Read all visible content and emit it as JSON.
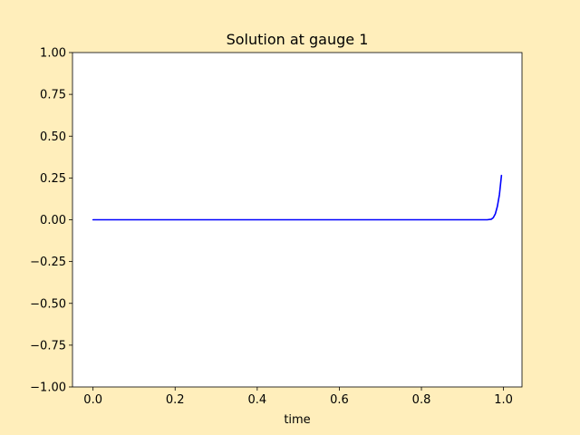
{
  "figure": {
    "background": "#ffeebb"
  },
  "chart_data": {
    "type": "line",
    "title": "Solution at gauge 1",
    "xlabel": "time",
    "ylabel": "",
    "xlim": [
      -0.05,
      1.045
    ],
    "ylim": [
      -1.0,
      1.0
    ],
    "xticks": [
      0.0,
      0.2,
      0.4,
      0.6,
      0.8,
      1.0
    ],
    "xtick_labels": [
      "0.0",
      "0.2",
      "0.4",
      "0.6",
      "0.8",
      "1.0"
    ],
    "yticks": [
      -1.0,
      -0.75,
      -0.5,
      -0.25,
      0.0,
      0.25,
      0.5,
      0.75,
      1.0
    ],
    "ytick_labels": [
      "−1.00",
      "−0.75",
      "−0.50",
      "−0.25",
      "0.00",
      "0.25",
      "0.50",
      "0.75",
      "1.00"
    ],
    "grid": false,
    "series": [
      {
        "color": "#0000ff",
        "x": [
          0.0,
          0.2,
          0.4,
          0.6,
          0.8,
          0.96,
          0.97,
          0.975,
          0.98,
          0.985,
          0.99,
          0.995
        ],
        "y": [
          0.0,
          0.0,
          0.0,
          0.0,
          0.0,
          0.0,
          0.003,
          0.012,
          0.035,
          0.08,
          0.15,
          0.265
        ]
      }
    ]
  }
}
